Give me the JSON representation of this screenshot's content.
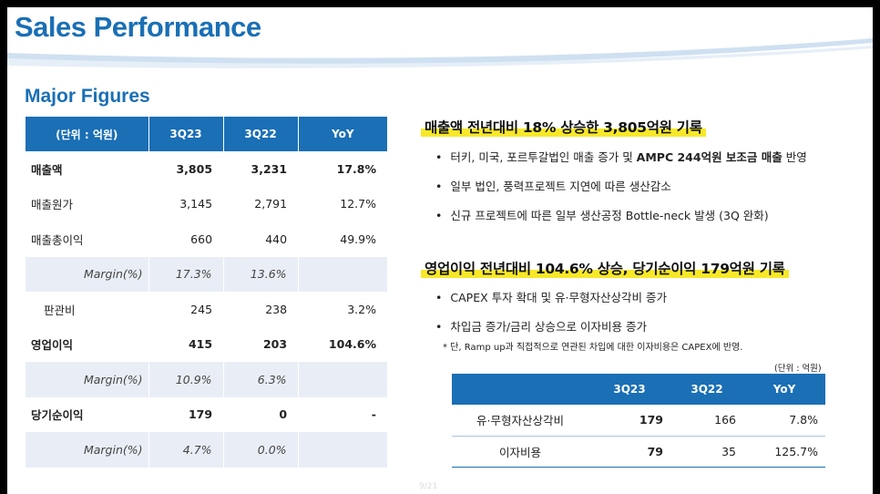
{
  "title": "Sales Performance",
  "section_title": "Major Figures",
  "left_table": {
    "headers": [
      "(단위 : 억원)",
      "3Q23",
      "3Q22",
      "YoY"
    ],
    "rows": [
      {
        "label": "매출액",
        "v1": "3,805",
        "v2": "3,231",
        "yoy": "17.8%"
      },
      {
        "label": "매출원가",
        "v1": "3,145",
        "v2": "2,791",
        "yoy": "12.7%"
      },
      {
        "label": "매출총이익",
        "v1": "660",
        "v2": "440",
        "yoy": "49.9%"
      },
      {
        "label": "Margin(%)",
        "v1": "17.3%",
        "v2": "13.6%",
        "yoy": ""
      },
      {
        "label": "판관비",
        "v1": "245",
        "v2": "238",
        "yoy": "3.2%"
      },
      {
        "label": "영업이익",
        "v1": "415",
        "v2": "203",
        "yoy": "104.6%"
      },
      {
        "label": "Margin(%)",
        "v1": "10.9%",
        "v2": "6.3%",
        "yoy": ""
      },
      {
        "label": "당기순이익",
        "v1": "179",
        "v2": "0",
        "yoy": "-"
      },
      {
        "label": "Margin(%)",
        "v1": "4.7%",
        "v2": "0.0%",
        "yoy": ""
      }
    ]
  },
  "heading1": "매출액 전년대비 18% 상승한 3,805억원 기록",
  "bullets1": {
    "item1_pre": "터키, 미국, 포르투갈법인 매출 증가 및 ",
    "item1_bold": "AMPC 244억원 보조금 매출",
    "item1_post": " 반영",
    "item2": "일부 법인, 풍력프로젝트 지연에 따른 생산감소",
    "item3": "신규 프로젝트에 따른 일부 생산공정 Bottle-neck 발생 (3Q 완화)"
  },
  "heading2": "영업이익 전년대비 104.6% 상승, 당기순이익 179억원 기록",
  "bullets2": [
    "CAPEX 투자 확대 및 유·무형자산상각비 증가",
    "차입금 증가/금리 상승으로 이자비용 증가"
  ],
  "note": "* 단, Ramp up과 직접적으로 연관된 차입에 대한 이자비용은 CAPEX에 반영.",
  "unit": "(단위 : 억원)",
  "right_table": {
    "headers": [
      "",
      "3Q23",
      "3Q22",
      "YoY"
    ],
    "rows": [
      {
        "label": "유·무형자산상각비",
        "v1": "179",
        "v2": "166",
        "yoy": "7.8%"
      },
      {
        "label": "이자비용",
        "v1": "79",
        "v2": "35",
        "yoy": "125.7%"
      }
    ]
  },
  "page_number": "9/21",
  "colors": {
    "brand": "#1a6fb5",
    "highlight": "#f7e829",
    "margin_row": "#e9eef6"
  }
}
